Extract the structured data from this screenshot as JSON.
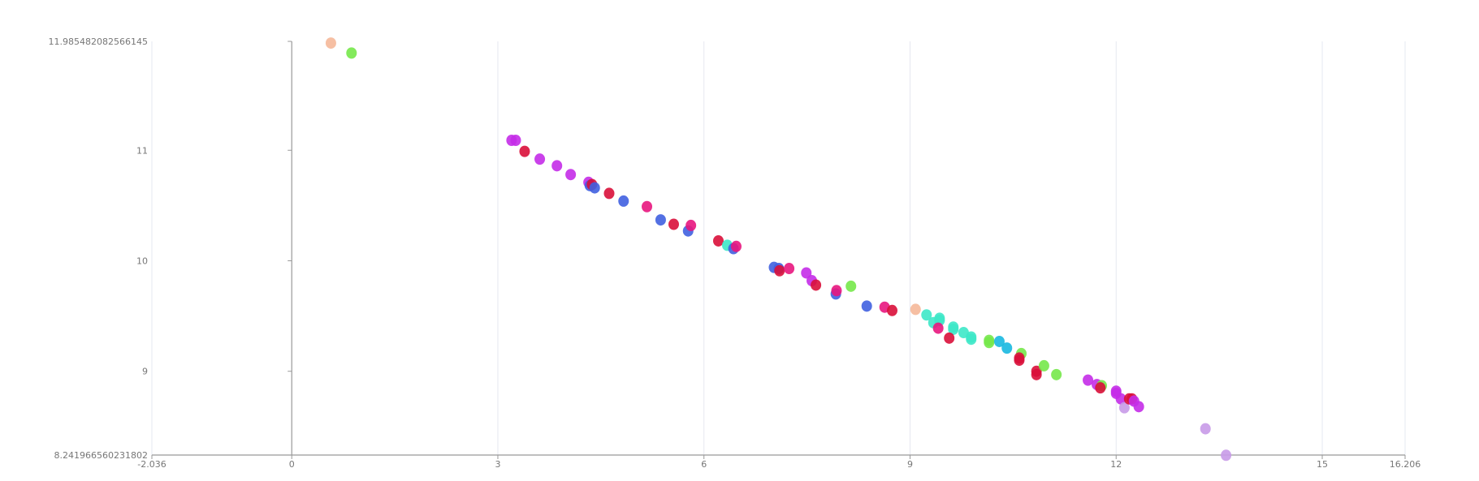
{
  "chart_data": {
    "type": "scatter",
    "title": "",
    "xlabel": "",
    "ylabel": "",
    "xlim": [
      -2.036,
      16.206
    ],
    "ylim": [
      8.241966560231802,
      11.985482082566145
    ],
    "x_tick_labels": [
      "-2.036",
      "0",
      "3",
      "6",
      "9",
      "12",
      "15",
      "16.206"
    ],
    "x_ticks": [
      -2.036,
      0,
      3,
      6,
      9,
      12,
      15,
      16.206
    ],
    "y_tick_labels": [
      "8.241966560231802",
      "9",
      "10",
      "11",
      "11.985482082566145"
    ],
    "y_ticks": [
      8.241966560231802,
      9,
      10,
      11,
      11.985482082566145
    ],
    "grid": "vertical",
    "colors": {
      "peach": "#f5b899",
      "green": "#76e84a",
      "purple": "#c42ce8",
      "crimson": "#d9103a",
      "blue": "#4060e0",
      "pink": "#e8167e",
      "teal": "#3de8c8",
      "cyan": "#18b8e0",
      "lavender": "#c89ae8"
    },
    "points": [
      {
        "x": 0.57,
        "y": 11.97,
        "c": "peach"
      },
      {
        "x": 0.87,
        "y": 11.88,
        "c": "green"
      },
      {
        "x": 3.2,
        "y": 11.09,
        "c": "purple"
      },
      {
        "x": 3.26,
        "y": 11.09,
        "c": "purple"
      },
      {
        "x": 3.39,
        "y": 10.99,
        "c": "crimson"
      },
      {
        "x": 3.61,
        "y": 10.92,
        "c": "purple"
      },
      {
        "x": 3.86,
        "y": 10.86,
        "c": "purple"
      },
      {
        "x": 4.06,
        "y": 10.78,
        "c": "purple"
      },
      {
        "x": 4.32,
        "y": 10.71,
        "c": "purple"
      },
      {
        "x": 4.34,
        "y": 10.68,
        "c": "blue"
      },
      {
        "x": 4.37,
        "y": 10.69,
        "c": "crimson"
      },
      {
        "x": 4.41,
        "y": 10.66,
        "c": "blue"
      },
      {
        "x": 4.62,
        "y": 10.61,
        "c": "crimson"
      },
      {
        "x": 4.83,
        "y": 10.54,
        "c": "blue"
      },
      {
        "x": 5.17,
        "y": 10.49,
        "c": "pink"
      },
      {
        "x": 5.37,
        "y": 10.37,
        "c": "blue"
      },
      {
        "x": 5.56,
        "y": 10.33,
        "c": "crimson"
      },
      {
        "x": 5.77,
        "y": 10.27,
        "c": "blue"
      },
      {
        "x": 5.81,
        "y": 10.32,
        "c": "pink"
      },
      {
        "x": 6.21,
        "y": 10.18,
        "c": "crimson"
      },
      {
        "x": 6.34,
        "y": 10.14,
        "c": "teal"
      },
      {
        "x": 6.43,
        "y": 10.11,
        "c": "blue"
      },
      {
        "x": 6.47,
        "y": 10.13,
        "c": "pink"
      },
      {
        "x": 7.02,
        "y": 9.94,
        "c": "blue"
      },
      {
        "x": 7.09,
        "y": 9.93,
        "c": "blue"
      },
      {
        "x": 7.1,
        "y": 9.91,
        "c": "crimson"
      },
      {
        "x": 7.24,
        "y": 9.93,
        "c": "pink"
      },
      {
        "x": 7.49,
        "y": 9.89,
        "c": "purple"
      },
      {
        "x": 7.57,
        "y": 9.82,
        "c": "purple"
      },
      {
        "x": 7.63,
        "y": 9.78,
        "c": "crimson"
      },
      {
        "x": 7.92,
        "y": 9.7,
        "c": "blue"
      },
      {
        "x": 7.93,
        "y": 9.73,
        "c": "pink"
      },
      {
        "x": 8.14,
        "y": 9.77,
        "c": "green"
      },
      {
        "x": 8.37,
        "y": 9.59,
        "c": "blue"
      },
      {
        "x": 8.63,
        "y": 9.58,
        "c": "pink"
      },
      {
        "x": 8.74,
        "y": 9.55,
        "c": "crimson"
      },
      {
        "x": 9.08,
        "y": 9.56,
        "c": "peach"
      },
      {
        "x": 9.24,
        "y": 9.51,
        "c": "teal"
      },
      {
        "x": 9.34,
        "y": 9.44,
        "c": "teal"
      },
      {
        "x": 9.43,
        "y": 9.48,
        "c": "teal"
      },
      {
        "x": 9.43,
        "y": 9.46,
        "c": "teal"
      },
      {
        "x": 9.41,
        "y": 9.39,
        "c": "pink"
      },
      {
        "x": 9.63,
        "y": 9.4,
        "c": "teal"
      },
      {
        "x": 9.63,
        "y": 9.38,
        "c": "teal"
      },
      {
        "x": 9.57,
        "y": 9.3,
        "c": "crimson"
      },
      {
        "x": 9.78,
        "y": 9.35,
        "c": "teal"
      },
      {
        "x": 9.89,
        "y": 9.31,
        "c": "teal"
      },
      {
        "x": 9.89,
        "y": 9.29,
        "c": "teal"
      },
      {
        "x": 10.15,
        "y": 9.28,
        "c": "green"
      },
      {
        "x": 10.15,
        "y": 9.26,
        "c": "green"
      },
      {
        "x": 10.3,
        "y": 9.27,
        "c": "cyan"
      },
      {
        "x": 10.41,
        "y": 9.21,
        "c": "cyan"
      },
      {
        "x": 10.62,
        "y": 9.16,
        "c": "green"
      },
      {
        "x": 10.59,
        "y": 9.1,
        "c": "crimson"
      },
      {
        "x": 10.59,
        "y": 9.12,
        "c": "crimson"
      },
      {
        "x": 10.84,
        "y": 9.0,
        "c": "crimson"
      },
      {
        "x": 10.84,
        "y": 8.97,
        "c": "crimson"
      },
      {
        "x": 10.95,
        "y": 9.05,
        "c": "green"
      },
      {
        "x": 11.13,
        "y": 8.97,
        "c": "green"
      },
      {
        "x": 11.59,
        "y": 8.92,
        "c": "purple"
      },
      {
        "x": 11.72,
        "y": 8.88,
        "c": "purple"
      },
      {
        "x": 11.79,
        "y": 8.87,
        "c": "green"
      },
      {
        "x": 11.77,
        "y": 8.85,
        "c": "crimson"
      },
      {
        "x": 12.0,
        "y": 8.82,
        "c": "purple"
      },
      {
        "x": 12.0,
        "y": 8.8,
        "c": "purple"
      },
      {
        "x": 12.07,
        "y": 8.75,
        "c": "purple"
      },
      {
        "x": 12.12,
        "y": 8.67,
        "c": "lavender"
      },
      {
        "x": 12.19,
        "y": 8.75,
        "c": "crimson"
      },
      {
        "x": 12.23,
        "y": 8.75,
        "c": "crimson"
      },
      {
        "x": 12.26,
        "y": 8.73,
        "c": "purple"
      },
      {
        "x": 12.33,
        "y": 8.68,
        "c": "purple"
      },
      {
        "x": 13.3,
        "y": 8.48,
        "c": "lavender"
      },
      {
        "x": 13.6,
        "y": 8.24,
        "c": "lavender"
      }
    ]
  }
}
